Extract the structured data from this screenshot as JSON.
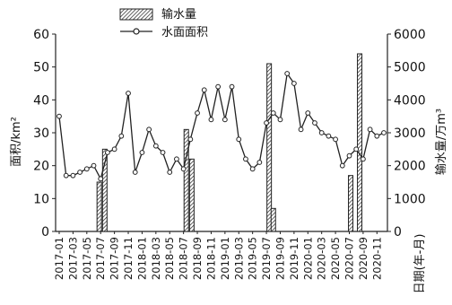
{
  "chart_data": {
    "type": "bar+line",
    "legend": {
      "placement": "top-center",
      "bar_label": "输水量",
      "line_label": "水面面积"
    },
    "y_left": {
      "label": "面积/km²",
      "ylim": [
        0,
        60
      ],
      "ticks": [
        0,
        10,
        20,
        30,
        40,
        50,
        60
      ]
    },
    "y_right": {
      "label": "输水量/万m³",
      "ylim": [
        0,
        6000
      ],
      "ticks": [
        0,
        1000,
        2000,
        3000,
        4000,
        5000,
        6000
      ]
    },
    "x_axis": {
      "label": "日期(年-月)",
      "range": [
        0,
        47
      ],
      "tick_labels": [
        "2017-01",
        "2017-03",
        "2017-05",
        "2017-07",
        "2017-09",
        "2017-11",
        "2018-01",
        "2018-03",
        "2018-05",
        "2018-07",
        "2018-09",
        "2018-11",
        "2019-01",
        "2019-03",
        "2019-05",
        "2019-07",
        "2019-09",
        "2019-11",
        "2020-01",
        "2020-03",
        "2020-05",
        "2020-07",
        "2020-09",
        "2020-11"
      ]
    },
    "bars": [
      {
        "x": 5.8,
        "value": 1500
      },
      {
        "x": 6.6,
        "value": 2500
      },
      {
        "x": 18.4,
        "value": 3100
      },
      {
        "x": 19.2,
        "value": 2200
      },
      {
        "x": 30.4,
        "value": 5100
      },
      {
        "x": 31.0,
        "value": 700
      },
      {
        "x": 42.2,
        "value": 1700
      },
      {
        "x": 43.5,
        "value": 5400
      }
    ],
    "area_line": [
      {
        "x": 0,
        "y": 35
      },
      {
        "x": 1,
        "y": 17
      },
      {
        "x": 2,
        "y": 17
      },
      {
        "x": 3,
        "y": 18
      },
      {
        "x": 4,
        "y": 19
      },
      {
        "x": 5,
        "y": 20
      },
      {
        "x": 6,
        "y": 16
      },
      {
        "x": 7,
        "y": 24
      },
      {
        "x": 8,
        "y": 25
      },
      {
        "x": 9,
        "y": 29
      },
      {
        "x": 10,
        "y": 42
      },
      {
        "x": 11,
        "y": 18
      },
      {
        "x": 12,
        "y": 24
      },
      {
        "x": 13,
        "y": 31
      },
      {
        "x": 14,
        "y": 26
      },
      {
        "x": 15,
        "y": 24
      },
      {
        "x": 16,
        "y": 18
      },
      {
        "x": 17,
        "y": 22
      },
      {
        "x": 18,
        "y": 19
      },
      {
        "x": 19,
        "y": 28
      },
      {
        "x": 20,
        "y": 36
      },
      {
        "x": 21,
        "y": 43
      },
      {
        "x": 22,
        "y": 34
      },
      {
        "x": 23,
        "y": 44
      },
      {
        "x": 24,
        "y": 34
      },
      {
        "x": 25,
        "y": 44
      },
      {
        "x": 26,
        "y": 28
      },
      {
        "x": 27,
        "y": 22
      },
      {
        "x": 28,
        "y": 19
      },
      {
        "x": 29,
        "y": 21
      },
      {
        "x": 30,
        "y": 33
      },
      {
        "x": 31,
        "y": 36
      },
      {
        "x": 32,
        "y": 34
      },
      {
        "x": 33,
        "y": 48
      },
      {
        "x": 34,
        "y": 45
      },
      {
        "x": 35,
        "y": 31
      },
      {
        "x": 36,
        "y": 36
      },
      {
        "x": 37,
        "y": 33
      },
      {
        "x": 38,
        "y": 30
      },
      {
        "x": 39,
        "y": 29
      },
      {
        "x": 40,
        "y": 28
      },
      {
        "x": 41,
        "y": 20
      },
      {
        "x": 42,
        "y": 23
      },
      {
        "x": 43,
        "y": 25
      },
      {
        "x": 44,
        "y": 22
      },
      {
        "x": 45,
        "y": 31
      },
      {
        "x": 46,
        "y": 29
      },
      {
        "x": 47,
        "y": 30
      }
    ],
    "grid": false
  }
}
